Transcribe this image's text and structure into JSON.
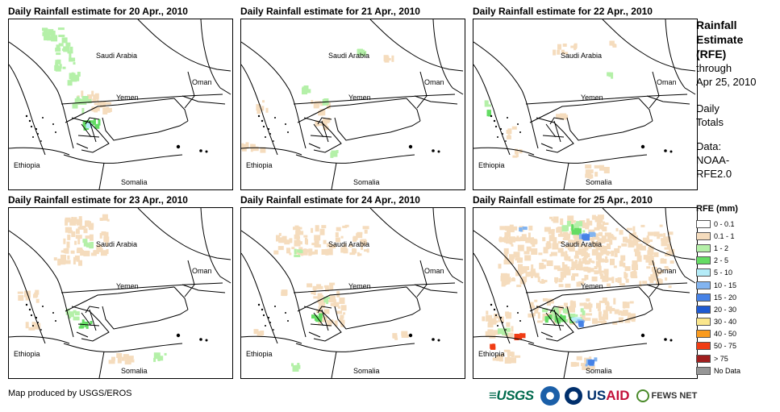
{
  "panels": [
    {
      "title": "Daily Rainfall estimate for 20 Apr., 2010",
      "scene": "a"
    },
    {
      "title": "Daily Rainfall estimate for 21 Apr., 2010",
      "scene": "b"
    },
    {
      "title": "Daily Rainfall estimate for 22 Apr., 2010",
      "scene": "c"
    },
    {
      "title": "Daily Rainfall estimate for 23 Apr., 2010",
      "scene": "d"
    },
    {
      "title": "Daily Rainfall estimate for 24 Apr., 2010",
      "scene": "e"
    },
    {
      "title": "Daily Rainfall estimate for 25 Apr., 2010",
      "scene": "f"
    }
  ],
  "map_labels": {
    "saudi": "Saudi Arabia",
    "oman": "Oman",
    "yemen": "Yemen",
    "ethiopia": "Ethiopia",
    "somalia": "Somalia"
  },
  "sidebar": {
    "title_line1": "Rainfall",
    "title_line2": "Estimate",
    "title_line3": "(RFE)",
    "through": "through",
    "date": "Apr 25, 2010",
    "daily1": "Daily",
    "daily2": "Totals",
    "data1": "Data:",
    "data2": "NOAA-",
    "data3": "RFE2.0"
  },
  "legend": {
    "title": "RFE (mm)",
    "items": [
      {
        "label": "0 - 0.1",
        "color": "#ffffff"
      },
      {
        "label": "0.1 - 1",
        "color": "#f5dcbd"
      },
      {
        "label": "1 - 2",
        "color": "#b4f0a8"
      },
      {
        "label": "2 - 5",
        "color": "#64dc64"
      },
      {
        "label": "5 - 10",
        "color": "#b4ecf8"
      },
      {
        "label": "10 - 15",
        "color": "#82b4f0"
      },
      {
        "label": "15 - 20",
        "color": "#4682e6"
      },
      {
        "label": "20 - 30",
        "color": "#1e5ad2"
      },
      {
        "label": "30 - 40",
        "color": "#fae68c"
      },
      {
        "label": "40 - 50",
        "color": "#fa9b1e"
      },
      {
        "label": "50 - 75",
        "color": "#f03c14"
      },
      {
        "label": "> 75",
        "color": "#a01e1e"
      },
      {
        "label": "No Data",
        "color": "#969696"
      }
    ]
  },
  "footer": {
    "credit": "Map produced by USGS/EROS",
    "logo_usgs": "≡USGS",
    "logo_usaid_a": "US",
    "logo_usaid_b": "AID",
    "logo_fews": "FEWS NET"
  }
}
